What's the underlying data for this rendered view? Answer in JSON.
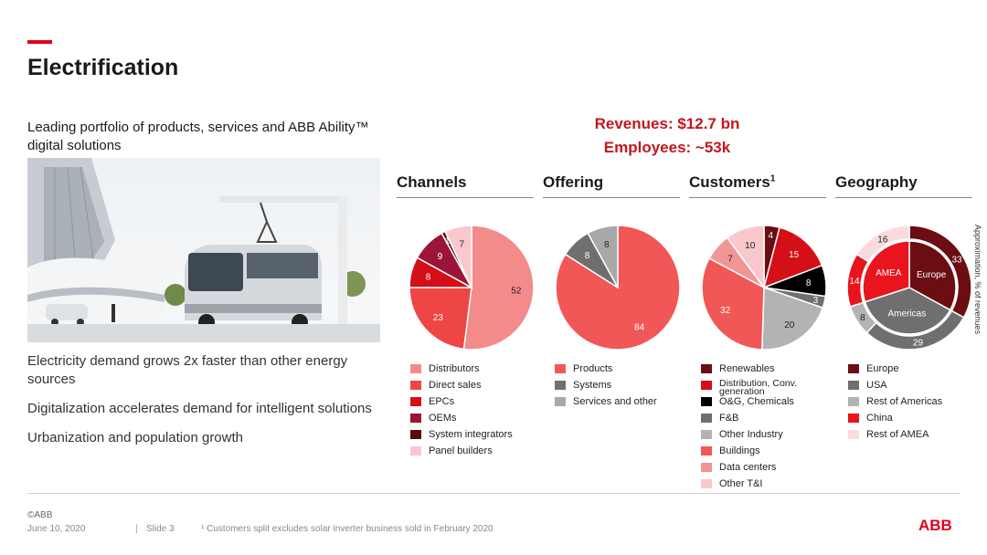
{
  "header": {
    "title": "Electrification",
    "subtitle": "Leading portfolio of products, services and ABB Ability™ digital solutions"
  },
  "kpis": {
    "revenues": "Revenues: $12.7 bn",
    "employees": "Employees: ~53k"
  },
  "bullets": [
    "Electricity demand grows 2x faster than other energy sources",
    "Digitalization accelerates demand for intelligent solutions",
    "Urbanization and population growth"
  ],
  "side_note": "Approximation, % of revenues",
  "footer": {
    "copyright": "©ABB",
    "date": "June 10, 2020",
    "separator": "|",
    "slide": "Slide 3",
    "footnote": "¹ Customers split excludes solar inverter business sold in February 2020",
    "logo": "ABB"
  },
  "chart_data": [
    {
      "type": "pie",
      "title": "Channels",
      "labels": [
        "Distributors",
        "Direct sales",
        "EPCs",
        "OEMs",
        "System integrators",
        "Panel builders"
      ],
      "values": [
        52,
        23,
        8,
        9,
        1,
        7
      ],
      "colors": [
        "#f48b8b",
        "#ee4545",
        "#d50f18",
        "#9b1537",
        "#5a0a0a",
        "#f8c8cc"
      ]
    },
    {
      "type": "pie",
      "title": "Offering",
      "labels": [
        "Products",
        "Systems",
        "Services and other"
      ],
      "values": [
        84,
        8,
        8
      ],
      "colors": [
        "#f25757",
        "#6f6f6f",
        "#a8a8a8"
      ]
    },
    {
      "type": "pie",
      "title": "Customers",
      "title_sup": "1",
      "labels": [
        "Renewables",
        "Distribution, Conv. generation",
        "O&G, Chemicals",
        "F&B",
        "Other Industry",
        "Buildings",
        "Data centers",
        "Other T&I"
      ],
      "values": [
        4,
        15,
        8,
        3,
        20,
        32,
        7,
        10
      ],
      "colors": [
        "#6b0d12",
        "#d50f18",
        "#000000",
        "#6f6f6f",
        "#b3b3b3",
        "#f25757",
        "#f29595",
        "#f8c8cc"
      ]
    },
    {
      "type": "pie",
      "title": "Geography",
      "style": "donut",
      "labels": [
        "Europe",
        "USA",
        "Rest of Americas",
        "China",
        "Rest of AMEA"
      ],
      "values": [
        33,
        29,
        8,
        14,
        16
      ],
      "colors": [
        "#6b0d12",
        "#6f6f6f",
        "#b3b3b3",
        "#e8141e",
        "#fadadd"
      ],
      "inner_labels": [
        "Europe",
        "Americas",
        "AMEA"
      ]
    }
  ]
}
